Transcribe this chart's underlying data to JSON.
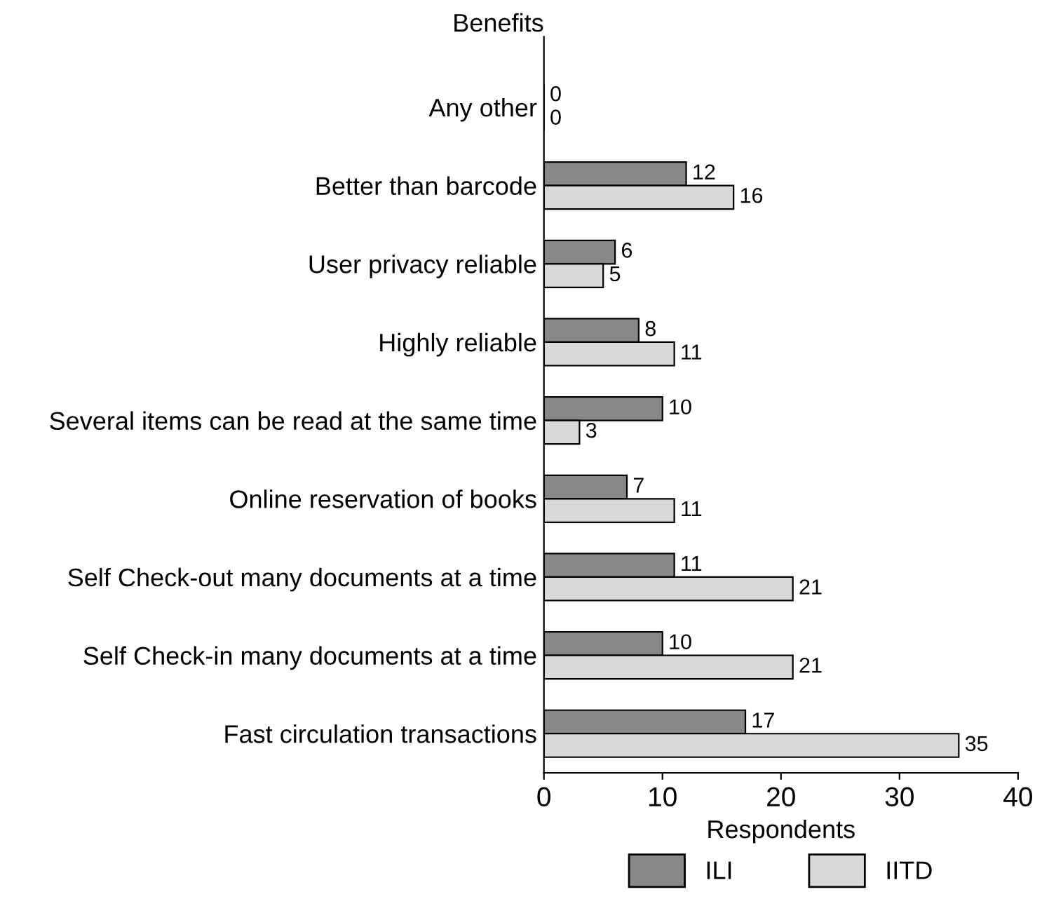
{
  "chart_data": {
    "type": "bar",
    "orientation": "horizontal",
    "ylabel": "Benefits",
    "xlabel": "Respondents",
    "categories": [
      "Any other",
      "Better than barcode",
      "User privacy reliable",
      "Highly reliable",
      "Several items can be read at the same time",
      "Online reservation of books",
      "Self Check-out many documents at a time",
      "Self Check-in many documents at a time",
      "Fast circulation transactions"
    ],
    "series": [
      {
        "name": "ILI",
        "color": "#888888",
        "values": [
          0,
          12,
          6,
          8,
          10,
          7,
          11,
          10,
          17
        ]
      },
      {
        "name": "IITD",
        "color": "#d9d9d9",
        "values": [
          0,
          16,
          5,
          11,
          3,
          11,
          21,
          21,
          35
        ]
      }
    ],
    "xlim": [
      0,
      40
    ],
    "xticks": [
      0,
      10,
      20,
      30,
      40
    ],
    "data_labels": true,
    "legend": "bottom",
    "grid": false
  }
}
